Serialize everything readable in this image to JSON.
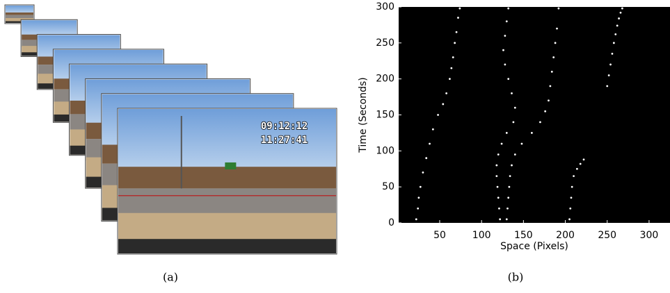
{
  "panel_a": {
    "caption": "(a)",
    "frame_time": "09:12:12",
    "frame_clock": "11:27:41"
  },
  "chart_data": {
    "type": "scatter",
    "caption": "(b)",
    "xlabel": "Space (Pixels)",
    "ylabel": "Time (Seconds)",
    "xlim": [
      1,
      325
    ],
    "ylim": [
      0,
      300
    ],
    "xticks": [
      50,
      100,
      150,
      200,
      250,
      300
    ],
    "yticks": [
      0,
      50,
      100,
      150,
      200,
      250,
      300
    ],
    "color": "#ffffff",
    "series": [
      {
        "x": [
          22,
          24,
          25,
          27,
          30,
          34,
          38,
          42,
          48,
          54,
          58,
          62,
          64,
          66,
          68,
          70,
          72,
          74
        ],
        "values": [
          5,
          20,
          35,
          50,
          70,
          90,
          110,
          130,
          150,
          165,
          180,
          200,
          215,
          230,
          250,
          265,
          285,
          298
        ]
      },
      {
        "x": [
          122,
          121,
          120,
          119,
          118,
          118,
          120,
          124,
          130,
          138,
          140,
          136,
          132,
          128,
          126,
          128,
          130,
          132
        ],
        "values": [
          5,
          20,
          35,
          50,
          65,
          80,
          95,
          110,
          125,
          140,
          160,
          180,
          200,
          220,
          240,
          260,
          280,
          298
        ]
      },
      {
        "x": [
          130,
          131,
          132,
          133,
          134,
          136,
          140,
          148,
          160,
          170,
          176,
          180,
          182,
          184,
          186,
          188,
          190,
          192
        ],
        "values": [
          5,
          20,
          35,
          50,
          65,
          80,
          95,
          110,
          125,
          140,
          155,
          170,
          190,
          210,
          230,
          250,
          270,
          298
        ]
      },
      {
        "x": [
          205,
          206,
          207,
          208,
          210,
          214,
          218,
          222
        ],
        "values": [
          5,
          20,
          35,
          50,
          65,
          75,
          82,
          88
        ]
      },
      {
        "x": [
          250,
          252,
          254,
          256,
          258,
          260,
          262,
          264,
          266,
          268
        ],
        "values": [
          190,
          205,
          220,
          235,
          250,
          262,
          274,
          284,
          292,
          298
        ]
      }
    ]
  }
}
